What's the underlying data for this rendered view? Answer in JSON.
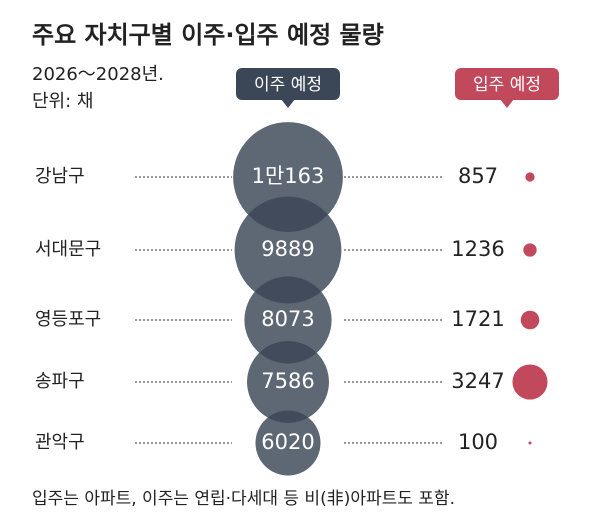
{
  "chart_data": {
    "type": "bubble",
    "title": "주요 자치구별 이주·입주 예정 물량",
    "subtitle": [
      "2026～2028년.",
      "단위: 채"
    ],
    "categories": [
      "강남구",
      "서대문구",
      "영등포구",
      "송파구",
      "관악구"
    ],
    "series": [
      {
        "name": "이주 예정",
        "color": "#3b4656",
        "values": [
          10163,
          9889,
          8073,
          7586,
          6020
        ],
        "value_labels": [
          "1만163",
          "9889",
          "8073",
          "7586",
          "6020"
        ]
      },
      {
        "name": "입주 예정",
        "color": "#c2485c",
        "values": [
          857,
          1236,
          1721,
          3247,
          100
        ]
      }
    ],
    "note": "입주는 아파트, 이주는 연립·다세대 등 비(非)아파트도 포함."
  }
}
